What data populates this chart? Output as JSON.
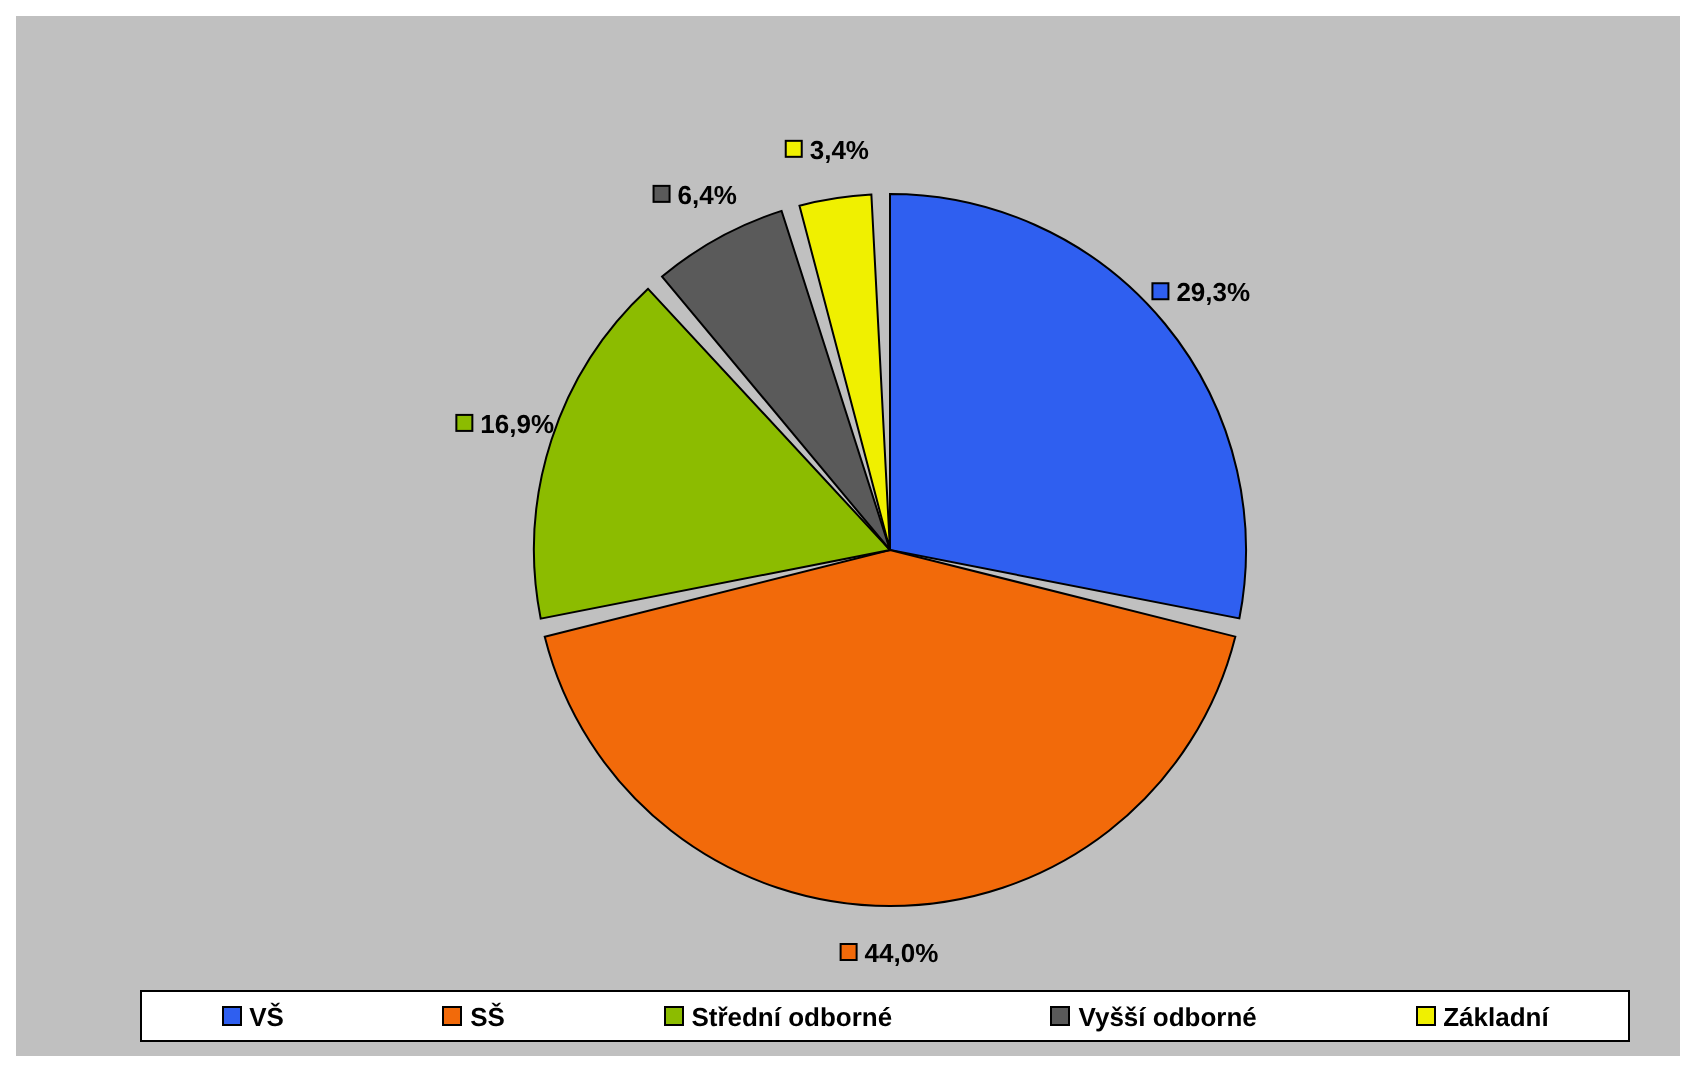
{
  "chart_data": {
    "type": "pie",
    "categories": [
      "VŠ",
      "SŠ",
      "Střední odborné",
      "Vyšší odborné",
      "Základní"
    ],
    "values": [
      29.3,
      44.0,
      16.9,
      6.4,
      3.4
    ],
    "value_labels": [
      "29,3%",
      "44,0%",
      "16,9%",
      "6,4%",
      "3,4%"
    ],
    "colors": [
      "#2f5ff0",
      "#f26a0a",
      "#8cbc00",
      "#5a5a5a",
      "#f0f000"
    ],
    "legend": "bottom"
  }
}
